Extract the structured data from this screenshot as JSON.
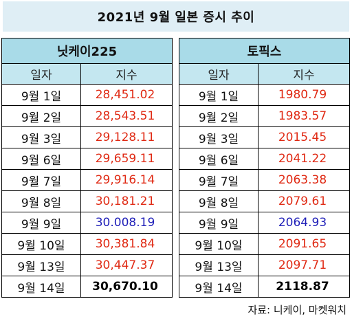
{
  "title": "2021년 9월 일본 증시 추이",
  "tables": [
    {
      "name": "닛케이225",
      "col_date": "일자",
      "col_value": "지수",
      "rows": [
        {
          "date": "9월  1일",
          "value": "28,451.02",
          "color": "#e02a14"
        },
        {
          "date": "9월  2일",
          "value": "28,543.51",
          "color": "#e02a14"
        },
        {
          "date": "9월  3일",
          "value": "29,128.11",
          "color": "#e02a14"
        },
        {
          "date": "9월  6일",
          "value": "29,659.11",
          "color": "#e02a14"
        },
        {
          "date": "9월  7일",
          "value": "29,916.14",
          "color": "#e02a14"
        },
        {
          "date": "9월  8일",
          "value": "30,181.21",
          "color": "#e02a14"
        },
        {
          "date": "9월  9일",
          "value": "30.008.19",
          "color": "#1f1fb8"
        },
        {
          "date": "9월  10일",
          "value": "30,381.84",
          "color": "#e02a14"
        },
        {
          "date": "9월  13일",
          "value": "30,447.37",
          "color": "#e02a14"
        },
        {
          "date": "9월  14일",
          "value": "30,670.10",
          "color": "#000000"
        }
      ]
    },
    {
      "name": "토픽스",
      "col_date": "일자",
      "col_value": "지수",
      "rows": [
        {
          "date": "9월  1일",
          "value": "1980.79",
          "color": "#e02a14"
        },
        {
          "date": "9월  2일",
          "value": "1983.57",
          "color": "#e02a14"
        },
        {
          "date": "9월  3일",
          "value": "2015.45",
          "color": "#e02a14"
        },
        {
          "date": "9월  6일",
          "value": "2041.22",
          "color": "#e02a14"
        },
        {
          "date": "9월  7일",
          "value": "2063.38",
          "color": "#e02a14"
        },
        {
          "date": "9월  8일",
          "value": "2079.61",
          "color": "#e02a14"
        },
        {
          "date": "9월  9일",
          "value": "2064.93",
          "color": "#1f1fb8"
        },
        {
          "date": "9월  10일",
          "value": "2091.65",
          "color": "#e02a14"
        },
        {
          "date": "9월  13일",
          "value": "2097.71",
          "color": "#e02a14"
        },
        {
          "date": "9월  14일",
          "value": "2118.87",
          "color": "#000000"
        }
      ]
    }
  ],
  "source": "자료: 니케이, 마켓워치"
}
